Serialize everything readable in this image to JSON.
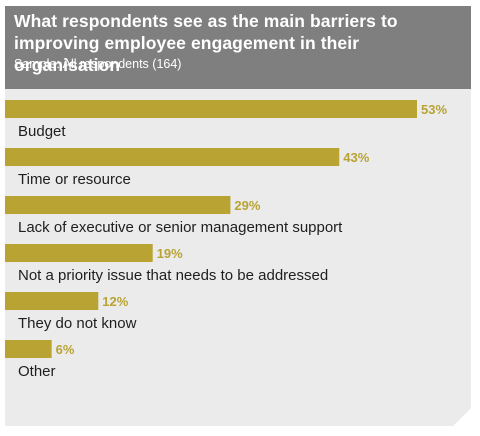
{
  "chart_data": {
    "type": "bar",
    "orientation": "horizontal",
    "title": "What respondents see as the main barriers to improving employee engagement in their organisation",
    "subtitle": "Sample: All respondents (164)",
    "categories": [
      "Budget",
      "Time or resource",
      "Lack of executive or senior management support",
      "Not a priority issue that needs to be addressed",
      "They do not know",
      "Other"
    ],
    "values": [
      53,
      43,
      29,
      19,
      12,
      6
    ],
    "value_labels": [
      "53%",
      "43%",
      "29%",
      "19%",
      "12%",
      "6%"
    ],
    "unit": "%",
    "xlim": [
      0,
      53
    ],
    "grid": false,
    "legend": "none",
    "colors": {
      "bar": "#b8a333",
      "value_label": "#b8a333",
      "header_bg": "#7f7f7f",
      "card_bg": "#ebebeb"
    }
  }
}
